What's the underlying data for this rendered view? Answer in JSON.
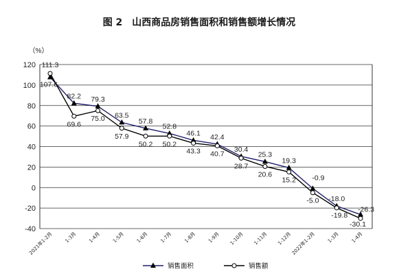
{
  "chart_data": {
    "type": "line",
    "title": "图 2　山西商品房销售面积和销售额增长情况",
    "ylabel": "（%）",
    "ylim": [
      -40,
      120
    ],
    "yticks": [
      -40,
      -20,
      0,
      20,
      40,
      60,
      80,
      100,
      120
    ],
    "grid": true,
    "legend_position": "bottom",
    "categories": [
      "2021年1-2月",
      "1-3月",
      "1-4月",
      "1-5月",
      "1-6月",
      "1-7月",
      "1-8月",
      "1-9月",
      "1-10月",
      "1-11月",
      "1-12月",
      "2022年1-2月",
      "1-3月",
      "1-4月"
    ],
    "series": [
      {
        "name": "销售面积",
        "values": [
          107.6,
          82.2,
          79.3,
          63.5,
          57.8,
          52.8,
          46.1,
          42.4,
          30.4,
          25.3,
          19.3,
          -0.9,
          -18.0,
          -26.3
        ],
        "labels": [
          "107.6",
          "82.2",
          "79.3",
          "63.5",
          "57.8",
          "52.8",
          "46.1",
          "42.4",
          "30.4",
          "25.3",
          "19.3",
          "-0.9",
          "-18.0",
          "-26.3"
        ],
        "color": "#1f1f6b",
        "marker": "triangle-filled"
      },
      {
        "name": "销售额",
        "values": [
          111.3,
          69.6,
          75.0,
          57.9,
          50.2,
          50.2,
          43.3,
          40.7,
          28.7,
          20.6,
          15.2,
          -5.0,
          -19.8,
          -30.1
        ],
        "labels": [
          "111.3",
          "69.6",
          "75.0",
          "57.9",
          "50.2",
          "50.2",
          "43.3",
          "40.7",
          "28.7",
          "20.6",
          "15.2",
          "-5.0",
          "-19.8",
          "-30.1"
        ],
        "color": "#000000",
        "marker": "circle-open"
      }
    ]
  }
}
